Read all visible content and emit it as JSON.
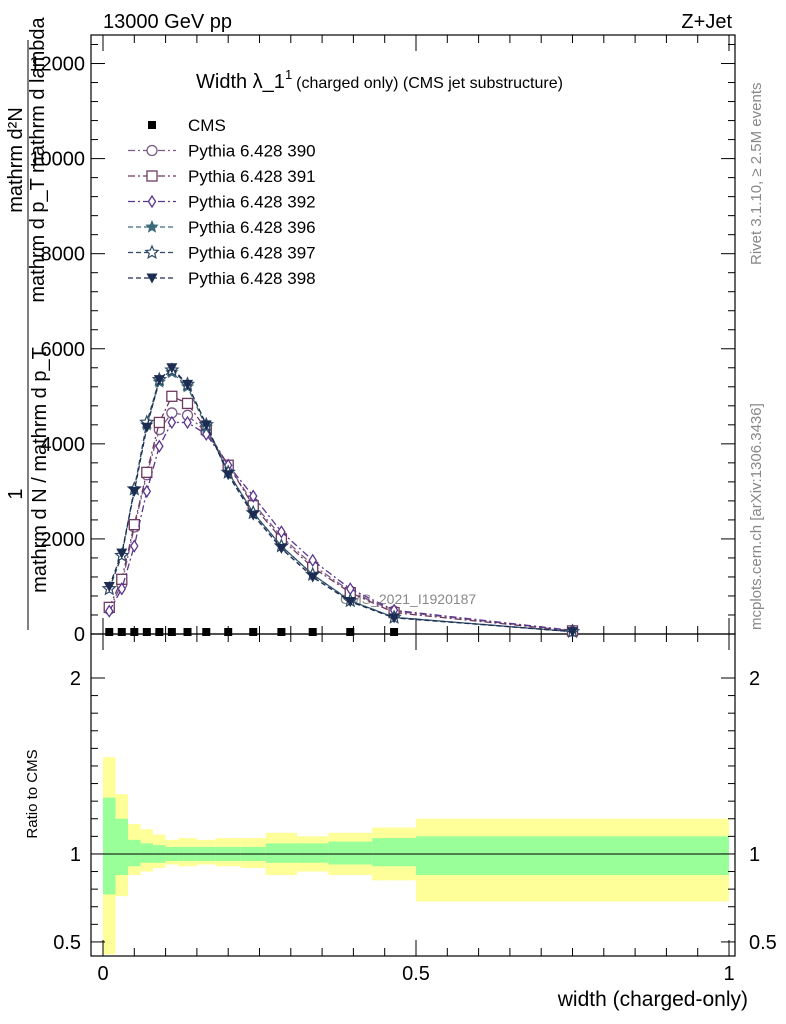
{
  "header": {
    "energy_label": "13000 GeV pp",
    "process_label": "Z+Jet",
    "title_main": "Width λ_1",
    "title_sup": "1",
    "title_sub": "(charged only) (CMS jet substructure)",
    "watermark": "CMS_2021_I1920187",
    "side_rivet": "Rivet 3.1.10, ≥ 2.5M events",
    "side_mcplots": "mcplots.cern.ch [arXiv:1306.3436]"
  },
  "ylabel_main": {
    "num_top": "mathrm d²N",
    "num_mid": "mathrm d p_T mathrm d lambda",
    "den": "mathrm d N / mathrm d p_T",
    "one": "1"
  },
  "ylabel_ratio": "Ratio to CMS",
  "xlabel": "width (charged-only)",
  "colors": {
    "cms": "#000000",
    "p390": "#7a5a86",
    "p391": "#6e3a5f",
    "p392": "#5b3590",
    "p396": "#3c6a78",
    "p397": "#2e4a66",
    "p398": "#1c2c52",
    "band_yellow": "#ffff99",
    "band_green": "#99ff99"
  },
  "chart_data": {
    "type": "line",
    "x": [
      0.01,
      0.03,
      0.05,
      0.07,
      0.09,
      0.11,
      0.135,
      0.165,
      0.2,
      0.24,
      0.285,
      0.335,
      0.395,
      0.465,
      0.75
    ],
    "xlim": [
      -0.02,
      1.0
    ],
    "ylim": [
      0,
      12600
    ],
    "yticks": [
      0,
      2000,
      4000,
      6000,
      8000,
      10000,
      12000
    ],
    "ytick_labels": [
      "0",
      "2000",
      "4000",
      "6000",
      "8000",
      "10000",
      "12000"
    ],
    "xticks": [
      0,
      0.5,
      1
    ],
    "xtick_labels": [
      "0",
      "0.5",
      "1"
    ],
    "series": [
      {
        "name": "CMS",
        "values": [
          0,
          0,
          0,
          0,
          0,
          0,
          0,
          0,
          0,
          0,
          0,
          0,
          0,
          0,
          0
        ]
      },
      {
        "name": "Pythia 6.428 390",
        "values": [
          520,
          1050,
          2250,
          3350,
          4300,
          4650,
          4600,
          4250,
          3550,
          2750,
          2050,
          1450,
          900,
          480,
          70
        ]
      },
      {
        "name": "Pythia 6.428 391",
        "values": [
          560,
          1150,
          2300,
          3400,
          4450,
          5000,
          4850,
          4300,
          3550,
          2700,
          2000,
          1400,
          870,
          450,
          65
        ]
      },
      {
        "name": "Pythia 6.428 392",
        "values": [
          480,
          950,
          1850,
          3000,
          3950,
          4450,
          4450,
          4200,
          3550,
          2900,
          2150,
          1550,
          950,
          500,
          75
        ]
      },
      {
        "name": "Pythia 6.428 396",
        "values": [
          950,
          1650,
          3050,
          4400,
          5300,
          5500,
          5200,
          4350,
          3400,
          2550,
          1850,
          1250,
          700,
          350,
          50
        ]
      },
      {
        "name": "Pythia 6.428 397",
        "values": [
          950,
          1650,
          3050,
          4450,
          5350,
          5550,
          5250,
          4400,
          3400,
          2550,
          1850,
          1250,
          700,
          350,
          50
        ]
      },
      {
        "name": "Pythia 6.428 398",
        "values": [
          1000,
          1700,
          3000,
          4350,
          5350,
          5600,
          5250,
          4400,
          3350,
          2500,
          1800,
          1200,
          680,
          340,
          50
        ]
      }
    ],
    "ratio": {
      "ylabel": "Ratio to CMS",
      "ylim": [
        0.42,
        2.25
      ],
      "yticks": [
        0.5,
        1,
        2
      ],
      "ytick_labels": [
        "0.5",
        "1",
        "2"
      ],
      "bins": [
        {
          "lo": 0.0,
          "hi": 0.02,
          "g_lo": 0.77,
          "g_hi": 1.32,
          "y_lo": 0.43,
          "y_hi": 1.55
        },
        {
          "lo": 0.02,
          "hi": 0.04,
          "g_lo": 0.88,
          "g_hi": 1.2,
          "y_lo": 0.76,
          "y_hi": 1.34
        },
        {
          "lo": 0.04,
          "hi": 0.06,
          "g_lo": 0.93,
          "g_hi": 1.08,
          "y_lo": 0.88,
          "y_hi": 1.17
        },
        {
          "lo": 0.06,
          "hi": 0.08,
          "g_lo": 0.95,
          "g_hi": 1.06,
          "y_lo": 0.9,
          "y_hi": 1.14
        },
        {
          "lo": 0.08,
          "hi": 0.1,
          "g_lo": 0.95,
          "g_hi": 1.05,
          "y_lo": 0.92,
          "y_hi": 1.11
        },
        {
          "lo": 0.1,
          "hi": 0.12,
          "g_lo": 0.96,
          "g_hi": 1.04,
          "y_lo": 0.94,
          "y_hi": 1.08
        },
        {
          "lo": 0.12,
          "hi": 0.15,
          "g_lo": 0.96,
          "g_hi": 1.04,
          "y_lo": 0.93,
          "y_hi": 1.09
        },
        {
          "lo": 0.15,
          "hi": 0.18,
          "g_lo": 0.96,
          "g_hi": 1.04,
          "y_lo": 0.94,
          "y_hi": 1.08
        },
        {
          "lo": 0.18,
          "hi": 0.22,
          "g_lo": 0.96,
          "g_hi": 1.04,
          "y_lo": 0.93,
          "y_hi": 1.09
        },
        {
          "lo": 0.22,
          "hi": 0.26,
          "g_lo": 0.96,
          "g_hi": 1.04,
          "y_lo": 0.92,
          "y_hi": 1.09
        },
        {
          "lo": 0.26,
          "hi": 0.31,
          "g_lo": 0.95,
          "g_hi": 1.06,
          "y_lo": 0.88,
          "y_hi": 1.12
        },
        {
          "lo": 0.31,
          "hi": 0.36,
          "g_lo": 0.95,
          "g_hi": 1.06,
          "y_lo": 0.9,
          "y_hi": 1.1
        },
        {
          "lo": 0.36,
          "hi": 0.43,
          "g_lo": 0.94,
          "g_hi": 1.07,
          "y_lo": 0.88,
          "y_hi": 1.12
        },
        {
          "lo": 0.43,
          "hi": 0.5,
          "g_lo": 0.93,
          "g_hi": 1.09,
          "y_lo": 0.85,
          "y_hi": 1.15
        },
        {
          "lo": 0.5,
          "hi": 1.0,
          "g_lo": 0.88,
          "g_hi": 1.1,
          "y_lo": 0.73,
          "y_hi": 1.2
        }
      ]
    },
    "legend_position": "top-left",
    "grid": false
  }
}
